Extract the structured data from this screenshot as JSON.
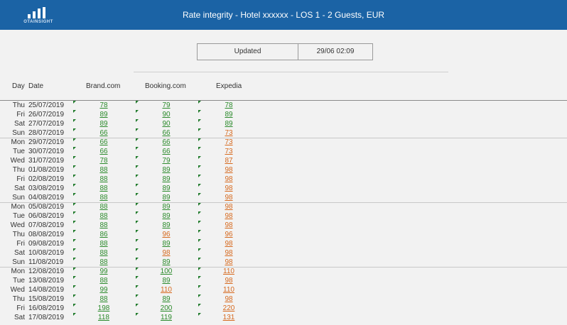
{
  "header": {
    "logo_text": "OTAINSIGHT",
    "title": "Rate integrity - Hotel xxxxxx - LOS 1 - 2 Guests, EUR"
  },
  "updated": {
    "label": "Updated",
    "value": "29/06 02:09"
  },
  "columns": {
    "day": "Day",
    "date": "Date",
    "c1": "Brand.com",
    "c2": "Booking.com",
    "c3": "Expedia"
  },
  "colors": {
    "header_bg": "#1b63a5",
    "parity": "#2b8a2b",
    "disparity": "#d6691e"
  },
  "rows": [
    {
      "day": "Thu",
      "date": "25/07/2019",
      "c1": "78",
      "c2": "79",
      "c3": "78",
      "s1": "green",
      "s2": "green",
      "s3": "green",
      "ws": false
    },
    {
      "day": "Fri",
      "date": "26/07/2019",
      "c1": "89",
      "c2": "90",
      "c3": "89",
      "s1": "green",
      "s2": "green",
      "s3": "green",
      "ws": false
    },
    {
      "day": "Sat",
      "date": "27/07/2019",
      "c1": "89",
      "c2": "90",
      "c3": "89",
      "s1": "green",
      "s2": "green",
      "s3": "green",
      "ws": false
    },
    {
      "day": "Sun",
      "date": "28/07/2019",
      "c1": "66",
      "c2": "66",
      "c3": "73",
      "s1": "green",
      "s2": "green",
      "s3": "orange",
      "ws": false
    },
    {
      "day": "Mon",
      "date": "29/07/2019",
      "c1": "66",
      "c2": "66",
      "c3": "73",
      "s1": "green",
      "s2": "green",
      "s3": "orange",
      "ws": true
    },
    {
      "day": "Tue",
      "date": "30/07/2019",
      "c1": "66",
      "c2": "66",
      "c3": "73",
      "s1": "green",
      "s2": "green",
      "s3": "orange",
      "ws": false
    },
    {
      "day": "Wed",
      "date": "31/07/2019",
      "c1": "78",
      "c2": "79",
      "c3": "87",
      "s1": "green",
      "s2": "green",
      "s3": "orange",
      "ws": false
    },
    {
      "day": "Thu",
      "date": "01/08/2019",
      "c1": "88",
      "c2": "89",
      "c3": "98",
      "s1": "green",
      "s2": "green",
      "s3": "orange",
      "ws": false
    },
    {
      "day": "Fri",
      "date": "02/08/2019",
      "c1": "88",
      "c2": "89",
      "c3": "98",
      "s1": "green",
      "s2": "green",
      "s3": "orange",
      "ws": false
    },
    {
      "day": "Sat",
      "date": "03/08/2019",
      "c1": "88",
      "c2": "89",
      "c3": "98",
      "s1": "green",
      "s2": "green",
      "s3": "orange",
      "ws": false
    },
    {
      "day": "Sun",
      "date": "04/08/2019",
      "c1": "88",
      "c2": "89",
      "c3": "98",
      "s1": "green",
      "s2": "green",
      "s3": "orange",
      "ws": false
    },
    {
      "day": "Mon",
      "date": "05/08/2019",
      "c1": "88",
      "c2": "89",
      "c3": "98",
      "s1": "green",
      "s2": "green",
      "s3": "orange",
      "ws": true
    },
    {
      "day": "Tue",
      "date": "06/08/2019",
      "c1": "88",
      "c2": "89",
      "c3": "98",
      "s1": "green",
      "s2": "green",
      "s3": "orange",
      "ws": false
    },
    {
      "day": "Wed",
      "date": "07/08/2019",
      "c1": "88",
      "c2": "89",
      "c3": "98",
      "s1": "green",
      "s2": "green",
      "s3": "orange",
      "ws": false
    },
    {
      "day": "Thu",
      "date": "08/08/2019",
      "c1": "86",
      "c2": "96",
      "c3": "96",
      "s1": "green",
      "s2": "orange",
      "s3": "orange",
      "ws": false
    },
    {
      "day": "Fri",
      "date": "09/08/2019",
      "c1": "88",
      "c2": "89",
      "c3": "98",
      "s1": "green",
      "s2": "green",
      "s3": "orange",
      "ws": false
    },
    {
      "day": "Sat",
      "date": "10/08/2019",
      "c1": "88",
      "c2": "98",
      "c3": "98",
      "s1": "green",
      "s2": "orange",
      "s3": "orange",
      "ws": false
    },
    {
      "day": "Sun",
      "date": "11/08/2019",
      "c1": "88",
      "c2": "89",
      "c3": "98",
      "s1": "green",
      "s2": "green",
      "s3": "orange",
      "ws": false
    },
    {
      "day": "Mon",
      "date": "12/08/2019",
      "c1": "99",
      "c2": "100",
      "c3": "110",
      "s1": "green",
      "s2": "green",
      "s3": "orange",
      "ws": true
    },
    {
      "day": "Tue",
      "date": "13/08/2019",
      "c1": "88",
      "c2": "89",
      "c3": "98",
      "s1": "green",
      "s2": "green",
      "s3": "orange",
      "ws": false
    },
    {
      "day": "Wed",
      "date": "14/08/2019",
      "c1": "99",
      "c2": "110",
      "c3": "110",
      "s1": "green",
      "s2": "orange",
      "s3": "orange",
      "ws": false
    },
    {
      "day": "Thu",
      "date": "15/08/2019",
      "c1": "88",
      "c2": "89",
      "c3": "98",
      "s1": "green",
      "s2": "green",
      "s3": "orange",
      "ws": false
    },
    {
      "day": "Fri",
      "date": "16/08/2019",
      "c1": "198",
      "c2": "200",
      "c3": "220",
      "s1": "green",
      "s2": "green",
      "s3": "orange",
      "ws": false
    },
    {
      "day": "Sat",
      "date": "17/08/2019",
      "c1": "118",
      "c2": "119",
      "c3": "131",
      "s1": "green",
      "s2": "green",
      "s3": "orange",
      "ws": false
    }
  ]
}
